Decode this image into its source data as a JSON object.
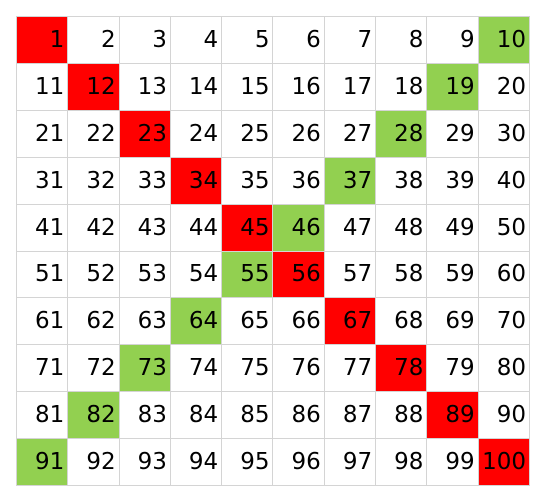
{
  "colors": {
    "red": "#ff0000",
    "green": "#92d050",
    "white": "#ffffff"
  },
  "grid": {
    "rows": [
      [
        "1",
        "2",
        "3",
        "4",
        "5",
        "6",
        "7",
        "8",
        "9",
        "10"
      ],
      [
        "11",
        "12",
        "13",
        "14",
        "15",
        "16",
        "17",
        "18",
        "19",
        "20"
      ],
      [
        "21",
        "22",
        "23",
        "24",
        "25",
        "26",
        "27",
        "28",
        "29",
        "30"
      ],
      [
        "31",
        "32",
        "33",
        "34",
        "35",
        "36",
        "37",
        "38",
        "39",
        "40"
      ],
      [
        "41",
        "42",
        "43",
        "44",
        "45",
        "46",
        "47",
        "48",
        "49",
        "50"
      ],
      [
        "51",
        "52",
        "53",
        "54",
        "55",
        "56",
        "57",
        "58",
        "59",
        "60"
      ],
      [
        "61",
        "62",
        "63",
        "64",
        "65",
        "66",
        "67",
        "68",
        "69",
        "70"
      ],
      [
        "71",
        "72",
        "73",
        "74",
        "75",
        "76",
        "77",
        "78",
        "79",
        "80"
      ],
      [
        "81",
        "82",
        "83",
        "84",
        "85",
        "86",
        "87",
        "88",
        "89",
        "90"
      ],
      [
        "91",
        "92",
        "93",
        "94",
        "95",
        "96",
        "97",
        "98",
        "99",
        "100"
      ]
    ],
    "red_cells": [
      "1",
      "12",
      "23",
      "34",
      "45",
      "56",
      "67",
      "78",
      "89",
      "100"
    ],
    "green_cells": [
      "10",
      "19",
      "28",
      "37",
      "46",
      "55",
      "64",
      "73",
      "82",
      "91"
    ]
  }
}
